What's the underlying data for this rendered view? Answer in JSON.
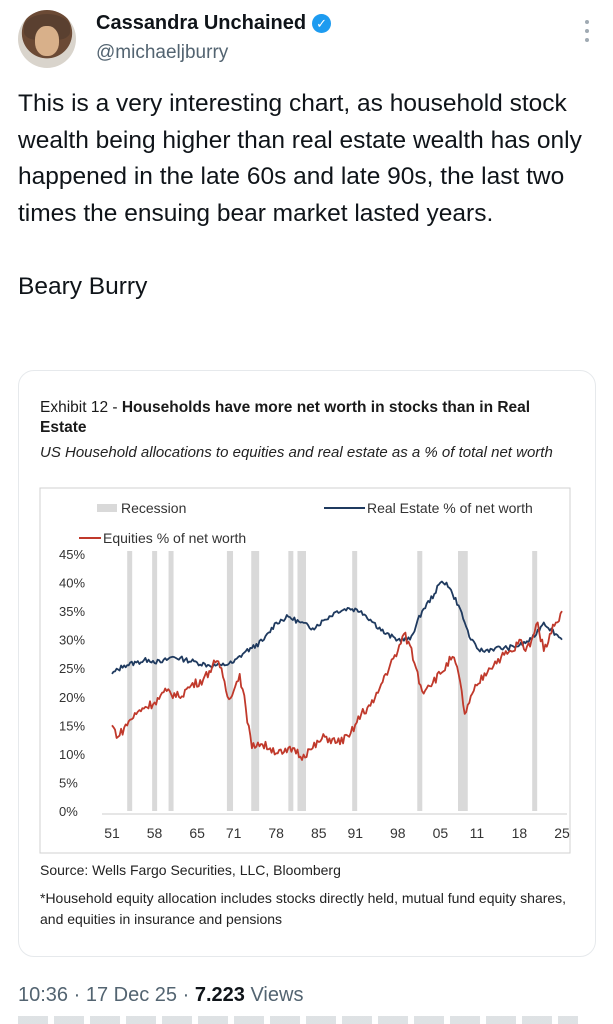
{
  "tweet": {
    "author_name": "Cassandra Unchained",
    "handle": "@michaeljburry",
    "text": "This is a very interesting chart, as household stock wealth being higher than real estate wealth has only happened in the late 60s and late 90s, the last two times the ensuing bear market lasted years.\n\nBeary Burry",
    "time": "10:36",
    "date": "17 Dec 25",
    "views_count": "7.223",
    "views_label": "Views",
    "separator": "·"
  },
  "chart_image": {
    "exhibit_prefix": "Exhibit 12 - ",
    "exhibit_title": "Households have more net worth in stocks than in Real Estate",
    "subtitle": "US Household allocations to equities and real estate as a % of total net worth",
    "source": "Source: Wells Fargo Securities, LLC, Bloomberg",
    "footnote": "*Household equity allocation includes stocks directly held, mutual fund equity shares, and equities in insurance and pensions"
  },
  "colors": {
    "real_estate": "#1f3a5f",
    "equities": "#c0392b",
    "recession": "#d9d9d9",
    "verified": "#1d9bf0"
  },
  "chart_data": {
    "type": "line",
    "legend": [
      "Recession",
      "Real Estate % of net worth",
      "Equities % of net worth"
    ],
    "y_ticks": [
      "45%",
      "40%",
      "35%",
      "30%",
      "25%",
      "20%",
      "15%",
      "10%",
      "5%",
      "0%"
    ],
    "x_ticks": [
      "51",
      "58",
      "65",
      "71",
      "78",
      "85",
      "91",
      "98",
      "05",
      "11",
      "18",
      "25"
    ],
    "xlim": [
      1951,
      2025
    ],
    "ylim": [
      0,
      45
    ],
    "recessions": [
      [
        1953.5,
        1954.3
      ],
      [
        1957.6,
        1958.3
      ],
      [
        1960.3,
        1961.1
      ],
      [
        1969.9,
        1970.9
      ],
      [
        1973.9,
        1975.2
      ],
      [
        1980.0,
        1980.6
      ],
      [
        1981.5,
        1982.9
      ],
      [
        1990.5,
        1991.2
      ],
      [
        2001.2,
        2001.9
      ],
      [
        2007.9,
        2009.5
      ],
      [
        2020.1,
        2020.4
      ]
    ],
    "series": [
      {
        "name": "Real Estate % of net worth",
        "x": [
          1951,
          1953,
          1955,
          1957,
          1959,
          1961,
          1963,
          1965,
          1967,
          1969,
          1971,
          1973,
          1974,
          1976,
          1978,
          1980,
          1982,
          1984,
          1986,
          1988,
          1990,
          1992,
          1994,
          1996,
          1998,
          2000,
          2002,
          2004,
          2005,
          2006,
          2007,
          2008,
          2009,
          2010,
          2011,
          2012,
          2014,
          2016,
          2018,
          2020,
          2022,
          2024,
          2025
        ],
        "values": [
          24,
          25.5,
          26,
          26.5,
          26,
          27,
          26.5,
          26,
          25.5,
          25.5,
          26,
          28,
          28.5,
          30,
          33,
          34,
          33,
          32,
          33.5,
          35,
          35.5,
          35,
          33,
          31,
          30,
          30,
          35,
          38,
          40,
          40,
          38,
          36,
          33,
          30,
          28.5,
          28,
          28.5,
          28.5,
          29,
          30,
          33,
          31,
          30
        ]
      },
      {
        "name": "Equities % of net worth",
        "x": [
          1951,
          1952,
          1954,
          1956,
          1958,
          1960,
          1962,
          1964,
          1966,
          1968,
          1969,
          1970,
          1971,
          1972,
          1973,
          1974,
          1975,
          1977,
          1979,
          1981,
          1982,
          1984,
          1986,
          1988,
          1990,
          1992,
          1994,
          1996,
          1998,
          1999,
          2000,
          2001,
          2002,
          2003,
          2005,
          2007,
          2008,
          2009,
          2011,
          2013,
          2015,
          2017,
          2018,
          2019,
          2020,
          2021,
          2022,
          2023,
          2024,
          2025
        ],
        "values": [
          15,
          13,
          16,
          18,
          19,
          21,
          20,
          22,
          23,
          26,
          25,
          20,
          21,
          24,
          18,
          11,
          12,
          11,
          10,
          11,
          9.5,
          11,
          13,
          12,
          13,
          17,
          19,
          24,
          28,
          31,
          29,
          25,
          21,
          22,
          24,
          27,
          24,
          17,
          22,
          25,
          27,
          28,
          30,
          28,
          30,
          33,
          28,
          31,
          33,
          35
        ]
      }
    ]
  }
}
